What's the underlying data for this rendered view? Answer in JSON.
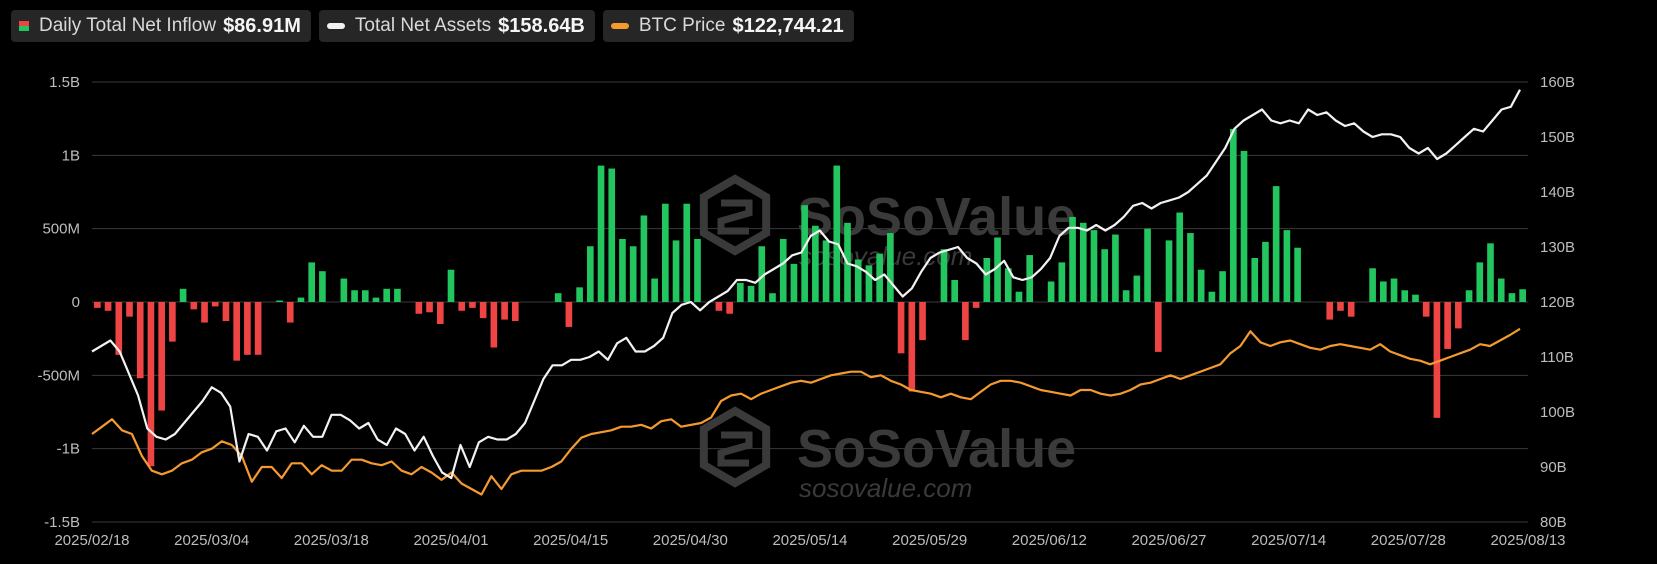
{
  "legend": {
    "inflow": {
      "label": "Daily Total Net Inflow",
      "value": "$86.91M"
    },
    "assets": {
      "label": "Total Net Assets",
      "value": "$158.64B",
      "color": "#f2f2f2"
    },
    "btc": {
      "label": "BTC Price",
      "value": "$122,744.21",
      "color": "#f59a2e"
    }
  },
  "watermark": {
    "brand": "SoSoValue",
    "url": "sosovalue.com"
  },
  "colors": {
    "positive": "#22c55e",
    "negative": "#ef4444",
    "grid": "#3a3a3a"
  },
  "chart_data": {
    "type": "bar+line",
    "x_tick_labels": [
      "2025/02/18",
      "2025/03/04",
      "2025/03/18",
      "2025/04/01",
      "2025/04/15",
      "2025/04/30",
      "2025/05/14",
      "2025/05/29",
      "2025/06/12",
      "2025/06/27",
      "2025/07/14",
      "2025/07/28",
      "2025/08/13"
    ],
    "y_left": {
      "ticks": [
        "1.5B",
        "1B",
        "500M",
        "0",
        "-500M",
        "-1B",
        "-1.5B"
      ],
      "range": [
        -1500,
        1500
      ],
      "unit": "M"
    },
    "y_right": {
      "ticks": [
        "160B",
        "150B",
        "140B",
        "130B",
        "120B",
        "110B",
        "100B",
        "90B",
        "80B"
      ],
      "range": [
        80,
        160
      ],
      "unit": "B"
    },
    "grid": true,
    "daily_net_inflow": [
      -40,
      -60,
      -360,
      -100,
      -520,
      -1120,
      -740,
      -270,
      90,
      -50,
      -140,
      -30,
      -130,
      -400,
      -360,
      -360,
      0,
      10,
      -140,
      30,
      270,
      210,
      0,
      160,
      80,
      80,
      30,
      90,
      90,
      0,
      -80,
      -70,
      -150,
      220,
      -60,
      -40,
      -110,
      -310,
      -120,
      -130,
      0,
      0,
      0,
      60,
      -170,
      100,
      380,
      930,
      910,
      430,
      380,
      590,
      160,
      670,
      420,
      670,
      430,
      0,
      -60,
      -80,
      130,
      110,
      380,
      60,
      430,
      260,
      660,
      520,
      420,
      930,
      540,
      290,
      250,
      330,
      470,
      -350,
      -610,
      -260,
      0,
      360,
      150,
      -260,
      -40,
      300,
      440,
      230,
      70,
      320,
      0,
      140,
      270,
      580,
      540,
      490,
      360,
      460,
      80,
      180,
      500,
      -340,
      420,
      610,
      470,
      220,
      70,
      210,
      1180,
      1030,
      300,
      410,
      790,
      490,
      370,
      0,
      0,
      -120,
      -60,
      -100,
      0,
      230,
      140,
      160,
      80,
      50,
      -100,
      -790,
      -320,
      -180,
      80,
      270,
      400,
      160,
      60,
      87
    ],
    "total_net_assets": [
      null,
      null,
      null,
      null,
      null,
      null,
      null,
      null,
      null,
      null,
      null,
      null,
      null,
      null,
      null,
      null,
      null,
      null,
      null,
      null,
      null,
      null,
      null,
      null,
      null,
      null,
      null,
      null,
      null,
      null,
      null,
      null,
      null,
      null,
      null,
      null,
      null,
      null,
      null,
      null,
      null,
      null,
      null,
      null,
      null,
      null,
      null,
      null,
      null,
      null,
      null,
      null,
      null,
      null,
      null,
      null,
      null,
      null,
      null,
      null,
      null,
      null,
      null,
      null,
      null,
      null,
      null,
      null,
      null,
      null,
      null,
      null,
      null,
      null,
      null,
      null,
      null,
      null,
      null,
      null,
      null,
      null,
      null,
      null,
      null,
      null,
      null,
      null,
      null,
      null,
      null,
      null,
      null,
      null,
      null,
      null,
      null,
      null,
      null,
      null,
      null,
      null,
      null,
      null,
      null,
      null,
      null,
      null,
      null,
      null,
      null,
      null,
      null,
      null,
      null,
      null,
      null,
      null,
      null,
      null,
      null,
      null,
      null,
      null,
      null,
      null,
      null,
      null,
      null,
      null,
      null,
      null,
      null
    ],
    "total_net_assets_b": [
      111,
      112,
      113,
      111,
      107,
      103,
      97,
      95.5,
      95,
      96,
      98,
      100,
      102,
      104.5,
      103.5,
      101,
      91,
      96,
      95.5,
      93,
      96.5,
      97,
      94.5,
      97.5,
      95.5,
      95.5,
      99.5,
      99.5,
      98.5,
      97,
      98,
      95,
      94,
      97,
      96,
      93,
      95.5,
      92,
      89,
      88,
      94,
      90,
      94.5,
      95.5,
      95,
      95,
      96,
      98,
      102,
      106,
      108.5,
      108.5,
      109.5,
      109.5,
      110,
      111,
      109.5,
      112.5,
      113.5,
      111,
      111,
      112,
      113.5,
      118,
      119.5,
      120,
      118.5,
      120,
      121,
      122,
      124,
      124,
      123.5,
      125,
      126,
      127,
      128.5,
      129,
      132,
      133,
      131,
      130.5,
      127,
      126.5,
      125.5,
      124,
      125,
      123,
      121,
      122.5,
      125.5,
      128,
      129,
      129.5,
      130,
      128,
      127,
      125,
      126,
      127.5,
      124.5,
      124,
      124.5,
      126,
      128,
      132,
      133.5,
      133.5,
      133,
      134,
      133,
      134,
      135.5,
      137.5,
      138,
      137,
      138,
      138.5,
      139,
      140,
      141.5,
      143,
      145.5,
      148,
      151.5,
      153,
      154,
      155,
      153,
      152.5,
      153,
      152.5,
      155,
      154,
      154.5,
      153,
      152,
      152.5,
      151,
      150,
      150.5,
      150.5,
      150,
      148,
      147,
      148,
      146,
      147,
      148.5,
      150,
      151.5,
      151,
      153,
      155,
      155.5,
      158.6
    ],
    "btc_price": [
      null
    ],
    "btc_price_k": [
      94,
      96,
      98,
      95,
      94,
      88,
      84,
      83,
      84,
      86,
      87,
      89,
      90,
      92,
      91,
      88,
      81,
      85,
      85,
      82,
      86,
      86,
      83,
      85.5,
      84,
      84,
      87,
      87,
      86,
      85.5,
      86.5,
      84,
      83,
      85,
      83.5,
      81.5,
      83.5,
      80.5,
      79,
      77.5,
      82.5,
      79,
      83,
      84,
      84,
      84,
      85,
      86.5,
      90,
      93,
      94,
      94.5,
      95,
      96,
      96,
      96.5,
      95.5,
      97.5,
      98,
      96,
      96.5,
      97,
      98.5,
      103,
      104.5,
      105,
      103.5,
      105,
      106,
      107,
      108,
      108.5,
      108,
      109,
      110,
      110.5,
      111,
      111,
      109.5,
      110,
      108.5,
      107.5,
      106,
      105.5,
      105,
      104,
      105,
      104,
      103.5,
      105.5,
      107.5,
      108.5,
      108.5,
      108,
      107,
      106,
      105.5,
      105,
      104.5,
      106,
      106,
      105,
      104.5,
      105,
      106,
      107.5,
      108,
      109,
      110,
      109,
      110,
      111,
      112,
      113,
      116,
      118,
      122,
      119,
      118,
      119,
      119.5,
      118.5,
      117.5,
      117,
      118,
      118.5,
      118,
      117.5,
      117,
      118.5,
      116.5,
      115.5,
      114.5,
      114,
      113,
      114,
      115,
      116,
      117,
      118.5,
      118,
      119.5,
      121,
      122.7
    ],
    "note_total_net_assets_scale": "B",
    "note_btc_price_scale": "K USD (mapped to right axis)"
  }
}
